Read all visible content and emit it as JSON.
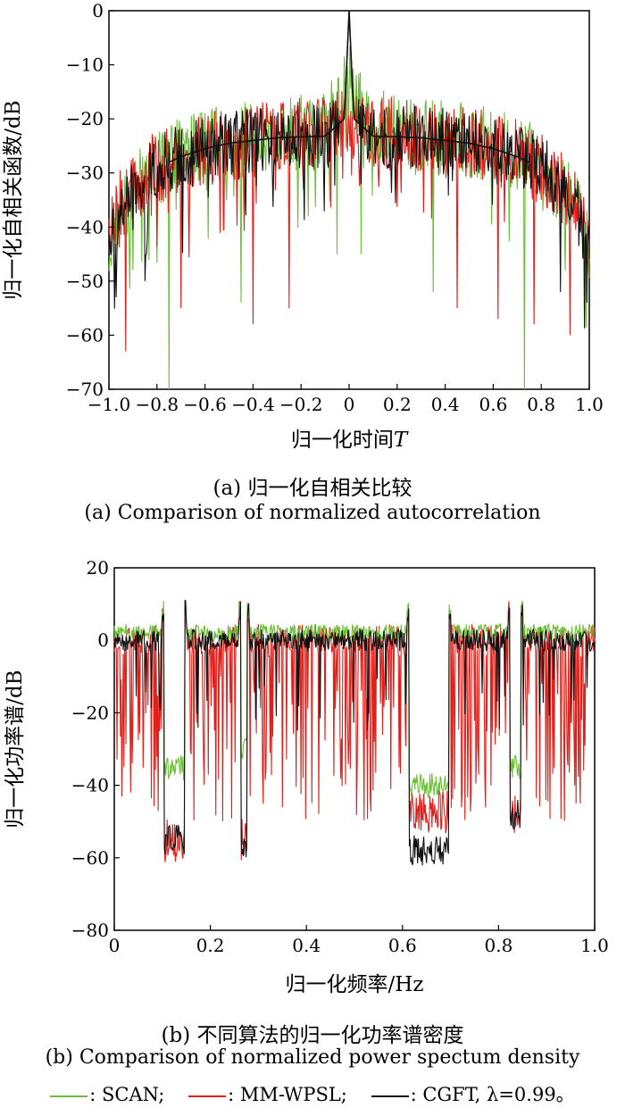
{
  "chart_data": [
    {
      "type": "line",
      "panel": "a",
      "xlabel": "归一化时间",
      "xlabel_var": "T",
      "ylabel": "归一化自相关函数/dB",
      "xlim": [
        -1.0,
        1.0
      ],
      "ylim": [
        -70,
        0
      ],
      "xticks": [
        "-1.0",
        "-0.8",
        "-0.6",
        "-0.4",
        "-0.2",
        "0",
        "0.2",
        "0.4",
        "0.6",
        "0.8",
        "1.0"
      ],
      "yticks": [
        "0",
        "-10",
        "-20",
        "-30",
        "-40",
        "-50",
        "-60",
        "-70"
      ],
      "caption_zh": "(a) 归一化自相关比较",
      "caption_en": "(a) Comparison of normalized autocorrelation",
      "series": [
        {
          "name": "SCAN",
          "color": "#6cbf3a",
          "x": [
            -1.0,
            -0.95,
            -0.9,
            -0.85,
            -0.8,
            -0.75,
            -0.7,
            -0.6,
            -0.5,
            -0.4,
            -0.3,
            -0.2,
            -0.1,
            -0.05,
            -0.02,
            0,
            0.02,
            0.05,
            0.1,
            0.2,
            0.3,
            0.4,
            0.5,
            0.6,
            0.7,
            0.73,
            0.75,
            0.8,
            0.85,
            0.9,
            0.95,
            1.0
          ],
          "y": [
            -44,
            -37,
            -34,
            -31,
            -29,
            -27,
            -26,
            -25,
            -24,
            -23.5,
            -23,
            -22.5,
            -21,
            -18,
            -14,
            -12,
            -14,
            -18,
            -21,
            -22.5,
            -23,
            -23.5,
            -24,
            -25,
            -26,
            -27,
            -27,
            -29,
            -31,
            -34,
            -37,
            -44
          ],
          "spread": 7,
          "dips": [
            [
              -0.75,
              -70
            ],
            [
              0.73,
              -70
            ],
            [
              -0.45,
              -54
            ],
            [
              0.35,
              -52
            ],
            [
              -0.05,
              -45
            ],
            [
              0.05,
              -45
            ],
            [
              -0.9,
              -48
            ],
            [
              0.9,
              -48
            ]
          ]
        },
        {
          "name": "MM-WPSL",
          "color": "#e0201b",
          "x": [
            -1.0,
            -0.95,
            -0.9,
            -0.85,
            -0.8,
            -0.7,
            -0.6,
            -0.5,
            -0.4,
            -0.3,
            -0.2,
            -0.1,
            -0.05,
            0,
            0.05,
            0.1,
            0.2,
            0.3,
            0.4,
            0.5,
            0.6,
            0.7,
            0.8,
            0.85,
            0.9,
            0.95,
            1.0
          ],
          "y": [
            -43,
            -36,
            -33,
            -31,
            -29,
            -27,
            -25.5,
            -24.5,
            -24,
            -23.5,
            -23,
            -22.5,
            -21.5,
            -21,
            -21.5,
            -22.5,
            -23,
            -23.5,
            -24,
            -24.5,
            -25.5,
            -27,
            -29,
            -31,
            -33,
            -36,
            -43
          ],
          "spread": 7,
          "dips": [
            [
              -0.93,
              -63
            ],
            [
              -0.4,
              -58
            ],
            [
              -0.25,
              -55
            ],
            [
              0.45,
              -55
            ],
            [
              0.62,
              -57
            ],
            [
              0.77,
              -58
            ],
            [
              0.92,
              -60
            ],
            [
              -0.7,
              -55
            ]
          ]
        },
        {
          "name": "CGFT",
          "color": "#111111",
          "x": [
            -1.0,
            -0.95,
            -0.9,
            -0.85,
            -0.8,
            -0.7,
            -0.6,
            -0.5,
            -0.4,
            -0.3,
            -0.2,
            -0.1,
            -0.02,
            0,
            0.02,
            0.1,
            0.2,
            0.3,
            0.4,
            0.5,
            0.6,
            0.7,
            0.8,
            0.85,
            0.9,
            0.95,
            1.0
          ],
          "y": [
            -44,
            -37,
            -34,
            -31,
            -29,
            -27,
            -25.5,
            -24.5,
            -24,
            -23.5,
            -23.3,
            -23.2,
            -20,
            0,
            -20,
            -23.2,
            -23.3,
            -23.5,
            -24,
            -24.5,
            -25.5,
            -27,
            -29,
            -31,
            -34,
            -37,
            -44
          ],
          "spread": 6,
          "dips": [
            [
              -0.97,
              -53
            ],
            [
              -0.85,
              -50
            ],
            [
              0.88,
              -52
            ],
            [
              0.99,
              -54
            ]
          ]
        }
      ]
    },
    {
      "type": "line",
      "panel": "b",
      "xlabel": "归一化频率/Hz",
      "ylabel": "归一化功率谱/dB",
      "xlim": [
        0,
        1.0
      ],
      "ylim": [
        -80,
        20
      ],
      "xticks": [
        "0",
        "0.2",
        "0.4",
        "0.6",
        "0.8",
        "1.0"
      ],
      "yticks": [
        "20",
        "0",
        "-20",
        "-40",
        "-60",
        "-80"
      ],
      "caption_zh": "(b) 不同算法的归一化功率谱密度",
      "caption_en": "(b) Comparison of normalized power spectum density",
      "stopbands": [
        [
          0.1,
          0.15
        ],
        [
          0.26,
          0.28
        ],
        [
          0.61,
          0.7
        ],
        [
          0.82,
          0.85
        ]
      ],
      "series": [
        {
          "name": "SCAN",
          "color": "#6cbf3a",
          "passband_level": 2,
          "stopband_levels": [
            -35,
            -30,
            -40,
            -35
          ],
          "spread": 5
        },
        {
          "name": "MM-WPSL",
          "color": "#e0201b",
          "passband_level": 0,
          "stopband_levels": [
            -55,
            -55,
            -47,
            -47
          ],
          "spread": 9
        },
        {
          "name": "CGFT",
          "color": "#111111",
          "passband_level": 0,
          "stopband_levels": [
            -55,
            -58,
            -58,
            -48
          ],
          "spread": 6
        }
      ]
    }
  ],
  "legend": {
    "items": [
      {
        "color": "#6cbf3a",
        "label": ": SCAN;"
      },
      {
        "color": "#e0201b",
        "label": ": MM-WPSL;"
      },
      {
        "color": "#111111",
        "label": ": CGFT, λ=0.99。"
      }
    ]
  }
}
